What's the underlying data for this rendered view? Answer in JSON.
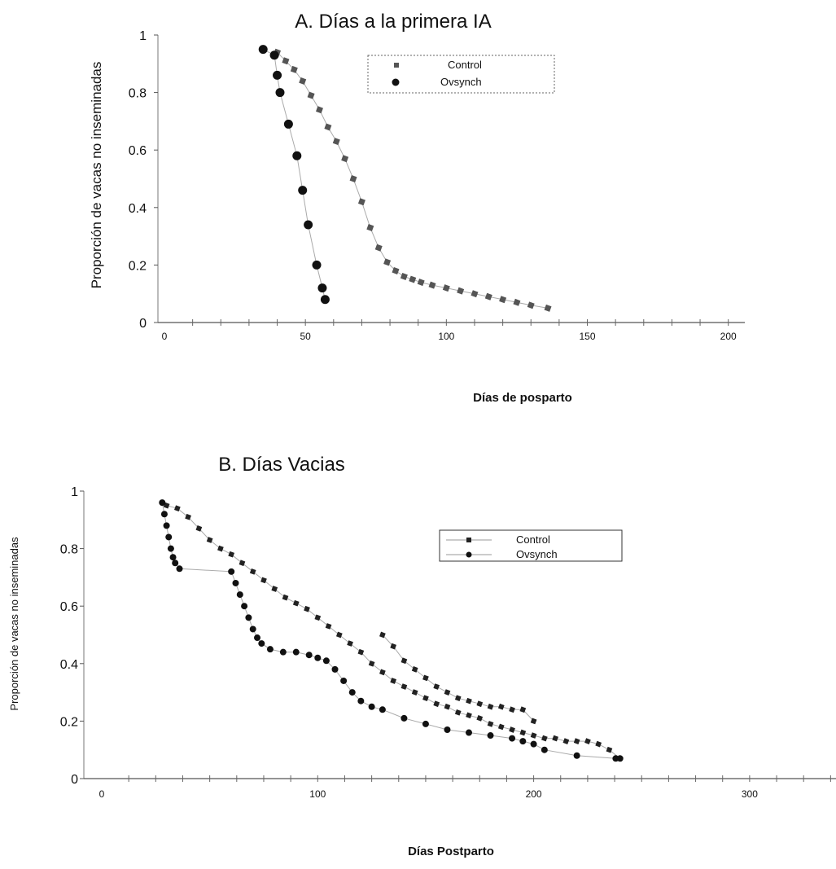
{
  "chart_data": [
    {
      "type": "line",
      "title": "A. Días a la primera IA",
      "xlabel": "Días de posparto",
      "ylabel": "Proporción de vacas no inseminadas",
      "xlim": [
        0,
        205
      ],
      "ylim": [
        0,
        1
      ],
      "xticks": [
        0,
        50,
        100,
        150,
        200
      ],
      "yticks": [
        0,
        0.2,
        0.4,
        0.6,
        0.8,
        1
      ],
      "ytick_labels": [
        "0",
        "0.2",
        "0.4",
        "0.6",
        "0.8",
        "1"
      ],
      "legend_position": "top-right",
      "series": [
        {
          "name": "Control",
          "marker": "square",
          "color": "#555555",
          "x": [
            40,
            43,
            46,
            49,
            52,
            55,
            58,
            61,
            64,
            67,
            70,
            73,
            76,
            79,
            82,
            85,
            88,
            91,
            95,
            100,
            105,
            110,
            115,
            120,
            125,
            130,
            136
          ],
          "y": [
            0.94,
            0.91,
            0.88,
            0.84,
            0.79,
            0.74,
            0.68,
            0.63,
            0.57,
            0.5,
            0.42,
            0.33,
            0.26,
            0.21,
            0.18,
            0.16,
            0.15,
            0.14,
            0.13,
            0.12,
            0.11,
            0.1,
            0.09,
            0.08,
            0.07,
            0.06,
            0.05
          ]
        },
        {
          "name": "Ovsynch",
          "marker": "circle",
          "color": "#111111",
          "x": [
            35,
            39,
            40,
            41,
            44,
            47,
            49,
            51,
            54,
            56,
            57
          ],
          "y": [
            0.95,
            0.93,
            0.86,
            0.8,
            0.69,
            0.58,
            0.46,
            0.34,
            0.2,
            0.12,
            0.08
          ]
        }
      ]
    },
    {
      "type": "line",
      "title": "B. Días Vacias",
      "xlabel": "Días Postparto",
      "ylabel": "Proporción de vacas no inseminadas",
      "xlim": [
        0,
        340
      ],
      "ylim": [
        0,
        1
      ],
      "xticks": [
        0,
        100,
        200,
        300
      ],
      "yticks": [
        0,
        0.2,
        0.4,
        0.6,
        0.8,
        1
      ],
      "ytick_labels": [
        "0",
        "0.2",
        "0.4",
        "0.6",
        "0.8",
        "1"
      ],
      "legend_position": "top-right",
      "series": [
        {
          "name": "Control",
          "marker": "square",
          "color": "#222222",
          "x": [
            30,
            35,
            40,
            45,
            50,
            55,
            60,
            65,
            70,
            75,
            80,
            85,
            90,
            95,
            100,
            105,
            110,
            115,
            120,
            125,
            130,
            135,
            140,
            145,
            150,
            155,
            160,
            165,
            170,
            175,
            180,
            185,
            190,
            195,
            200,
            205,
            210,
            215,
            220,
            225,
            230,
            235,
            240
          ],
          "y": [
            0.95,
            0.94,
            0.91,
            0.87,
            0.83,
            0.8,
            0.78,
            0.75,
            0.72,
            0.69,
            0.66,
            0.63,
            0.61,
            0.59,
            0.56,
            0.53,
            0.5,
            0.47,
            0.44,
            0.4,
            0.37,
            0.34,
            0.32,
            0.3,
            0.28,
            0.26,
            0.25,
            0.23,
            0.22,
            0.21,
            0.19,
            0.18,
            0.17,
            0.16,
            0.15,
            0.14,
            0.14,
            0.13,
            0.13,
            0.13,
            0.12,
            0.1,
            0.07
          ]
        },
        {
          "name": "Control",
          "marker": "square",
          "color": "#222222",
          "x": [
            130,
            135,
            140,
            145,
            150,
            155,
            160,
            165,
            170,
            175,
            180,
            185,
            190,
            195,
            200
          ],
          "y": [
            0.5,
            0.46,
            0.41,
            0.38,
            0.35,
            0.32,
            0.3,
            0.28,
            0.27,
            0.26,
            0.25,
            0.25,
            0.24,
            0.24,
            0.2
          ]
        },
        {
          "name": "Ovsynch",
          "marker": "circle",
          "color": "#111111",
          "x": [
            28,
            29,
            30,
            31,
            32,
            33,
            34,
            36,
            60,
            62,
            64,
            66,
            68,
            70,
            72,
            74,
            78,
            84,
            90,
            96,
            100,
            104,
            108,
            112,
            116,
            120,
            125,
            130,
            140,
            150,
            160,
            170,
            180,
            190,
            195,
            200,
            205,
            220,
            238,
            240
          ],
          "y": [
            0.96,
            0.92,
            0.88,
            0.84,
            0.8,
            0.77,
            0.75,
            0.73,
            0.72,
            0.68,
            0.64,
            0.6,
            0.56,
            0.52,
            0.49,
            0.47,
            0.45,
            0.44,
            0.44,
            0.43,
            0.42,
            0.41,
            0.38,
            0.34,
            0.3,
            0.27,
            0.25,
            0.24,
            0.21,
            0.19,
            0.17,
            0.16,
            0.15,
            0.14,
            0.13,
            0.12,
            0.1,
            0.08,
            0.07,
            0.07
          ]
        }
      ]
    }
  ]
}
